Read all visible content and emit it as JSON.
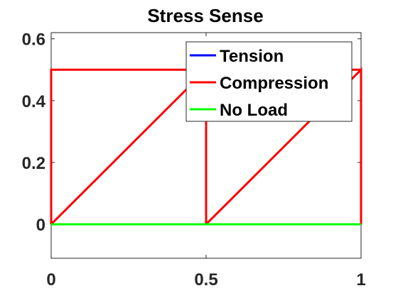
{
  "chart_data": {
    "type": "line",
    "title": "Stress Sense",
    "xlabel": "",
    "ylabel": "",
    "xlim": [
      0,
      1
    ],
    "ylim": [
      -0.11,
      0.62
    ],
    "x_ticks": [
      0,
      0.5,
      1
    ],
    "x_tick_labels": [
      "0",
      "0.5",
      "1"
    ],
    "y_ticks": [
      0,
      0.2,
      0.4,
      0.6
    ],
    "y_tick_labels": [
      "0",
      "0.2",
      "0.4",
      "0.6"
    ],
    "grid": false,
    "legend_position": "top-right",
    "series": [
      {
        "name": "Tension",
        "color": "#0000ff",
        "points": []
      },
      {
        "name": "Compression",
        "color": "#ff0000",
        "segments": [
          [
            [
              0,
              0
            ],
            [
              0,
              0.5
            ],
            [
              0.5,
              0.5
            ],
            [
              0.5,
              0
            ]
          ],
          [
            [
              0,
              0
            ],
            [
              0.5,
              0.5
            ]
          ],
          [
            [
              0.5,
              0
            ],
            [
              1,
              0.5
            ],
            [
              1,
              0
            ]
          ],
          [
            [
              0.5,
              0.5
            ],
            [
              1,
              0.5
            ]
          ]
        ]
      },
      {
        "name": "No Load",
        "color": "#00ff00",
        "segments": [
          [
            [
              0,
              0
            ],
            [
              1,
              0
            ]
          ]
        ]
      }
    ]
  }
}
